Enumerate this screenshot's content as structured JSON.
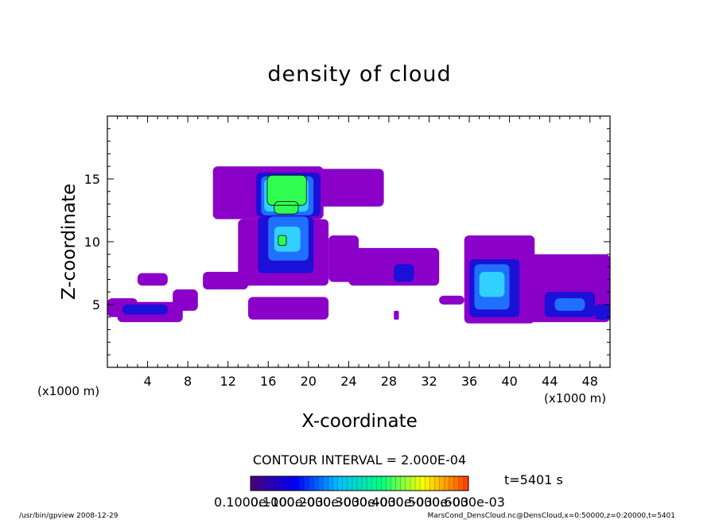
{
  "chart_data": {
    "type": "heatmap",
    "title": "density of cloud",
    "xlabel": "X-coordinate",
    "ylabel": "Z-coordinate",
    "x_unit": "(x1000 m)",
    "y_unit": "(x1000 m)",
    "xlim": [
      0,
      50
    ],
    "ylim": [
      0,
      20
    ],
    "x_ticks": [
      4,
      8,
      12,
      16,
      20,
      24,
      28,
      32,
      36,
      40,
      44,
      48
    ],
    "y_ticks": [
      5,
      10,
      15
    ],
    "contour_interval": "CONTOUR INTERVAL = 2.000E-04",
    "time_label": "t=5401  s",
    "colorbar": {
      "min": 0.0001,
      "max": 0.0006,
      "colors": [
        "#4b0082",
        "#0000ff",
        "#00bfff",
        "#00ff7f",
        "#ffff00",
        "#ff4500"
      ],
      "labels": [
        "0.1000e-10",
        "0.1000e-03",
        "0.2000e-03",
        "0.3000e-03",
        "0.4000e-03",
        "0.5000e-03",
        "0.6000e-03"
      ]
    },
    "level_colors": [
      "#8a00c8",
      "#1a10d8",
      "#2070ff",
      "#30d0ff",
      "#30ff50"
    ],
    "cloud_regions": [
      {
        "x": [
          10.5,
          21.5
        ],
        "z": [
          11.8,
          16.0
        ],
        "level": 1
      },
      {
        "x": [
          21.0,
          27.5
        ],
        "z": [
          12.8,
          15.8
        ],
        "level": 1
      },
      {
        "x": [
          13.0,
          22.0
        ],
        "z": [
          6.5,
          11.8
        ],
        "level": 1
      },
      {
        "x": [
          9.5,
          14.0
        ],
        "z": [
          6.2,
          7.6
        ],
        "level": 1
      },
      {
        "x": [
          22.0,
          25.0
        ],
        "z": [
          6.8,
          10.5
        ],
        "level": 1
      },
      {
        "x": [
          24.0,
          33.0
        ],
        "z": [
          6.5,
          9.5
        ],
        "level": 1
      },
      {
        "x": [
          3.0,
          6.0
        ],
        "z": [
          6.5,
          7.5
        ],
        "level": 1
      },
      {
        "x": [
          0.0,
          3.0
        ],
        "z": [
          4.0,
          5.5
        ],
        "level": 1
      },
      {
        "x": [
          1.0,
          7.5
        ],
        "z": [
          3.6,
          5.2
        ],
        "level": 1
      },
      {
        "x": [
          6.5,
          9.0
        ],
        "z": [
          4.5,
          6.2
        ],
        "level": 1
      },
      {
        "x": [
          14.0,
          22.0
        ],
        "z": [
          3.8,
          5.6
        ],
        "level": 1
      },
      {
        "x": [
          28.5,
          29.0
        ],
        "z": [
          3.8,
          4.5
        ],
        "level": 1
      },
      {
        "x": [
          33.0,
          35.5
        ],
        "z": [
          5.0,
          5.7
        ],
        "level": 1
      },
      {
        "x": [
          35.5,
          42.5
        ],
        "z": [
          3.5,
          10.5
        ],
        "level": 1
      },
      {
        "x": [
          40.5,
          50.0
        ],
        "z": [
          3.6,
          9.0
        ],
        "level": 1
      },
      {
        "x": [
          14.8,
          21.2
        ],
        "z": [
          12.0,
          15.5
        ],
        "level": 2
      },
      {
        "x": [
          15.0,
          20.5
        ],
        "z": [
          7.5,
          12.0
        ],
        "level": 2
      },
      {
        "x": [
          28.5,
          30.5
        ],
        "z": [
          6.8,
          8.2
        ],
        "level": 2
      },
      {
        "x": [
          1.5,
          6.0
        ],
        "z": [
          4.2,
          5.0
        ],
        "level": 2
      },
      {
        "x": [
          36.0,
          41.0
        ],
        "z": [
          4.0,
          8.6
        ],
        "level": 2
      },
      {
        "x": [
          43.5,
          48.5
        ],
        "z": [
          4.0,
          6.0
        ],
        "level": 2
      },
      {
        "x": [
          48.5,
          50.0
        ],
        "z": [
          3.8,
          5.0
        ],
        "level": 2
      },
      {
        "x": [
          15.3,
          20.5
        ],
        "z": [
          12.1,
          15.2
        ],
        "level": 3
      },
      {
        "x": [
          16.0,
          20.0
        ],
        "z": [
          8.5,
          12.0
        ],
        "level": 3
      },
      {
        "x": [
          36.5,
          40.0
        ],
        "z": [
          4.6,
          8.2
        ],
        "level": 3
      },
      {
        "x": [
          44.5,
          47.5
        ],
        "z": [
          4.5,
          5.5
        ],
        "level": 3
      },
      {
        "x": [
          15.6,
          20.0
        ],
        "z": [
          12.4,
          15.0
        ],
        "level": 4
      },
      {
        "x": [
          16.6,
          19.2
        ],
        "z": [
          9.2,
          11.2
        ],
        "level": 4
      },
      {
        "x": [
          37.0,
          39.5
        ],
        "z": [
          5.6,
          7.6
        ],
        "level": 4
      },
      {
        "x": [
          15.9,
          19.8
        ],
        "z": [
          12.9,
          15.3
        ],
        "level": 5
      },
      {
        "x": [
          16.6,
          19.0
        ],
        "z": [
          12.2,
          13.2
        ],
        "level": 5
      },
      {
        "x": [
          17.0,
          17.8
        ],
        "z": [
          9.7,
          10.5
        ],
        "level": 5
      }
    ]
  },
  "footer": {
    "left": "/usr/bin/gpview   2008-12-29",
    "right": "MarsCond_DensCloud.nc@DensCloud,x=0:50000,z=0:20000,t=5401"
  }
}
